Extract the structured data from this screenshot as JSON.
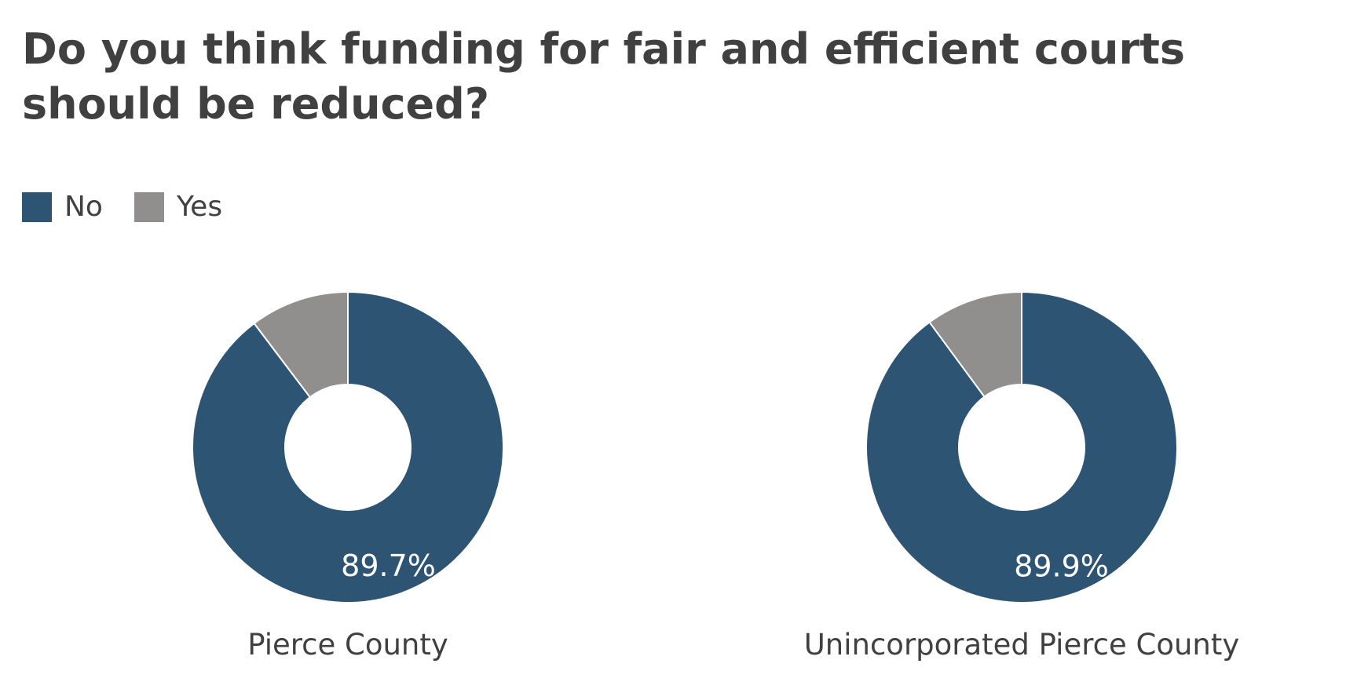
{
  "chart_data": {
    "type": "pie",
    "title": "Do you think funding for fair and efficient courts should be reduced?",
    "legend": {
      "placement": "top-left",
      "entries": [
        {
          "label": "No",
          "color": "#2e5474"
        },
        {
          "label": "Yes",
          "color": "#918e8e"
        }
      ]
    },
    "charts": [
      {
        "label": "Pierce County",
        "slices": [
          {
            "category": "No",
            "value": 89.7,
            "display": "89.7%"
          },
          {
            "category": "Yes",
            "value": 10.3
          }
        ]
      },
      {
        "label": "Unincorporated Pierce County",
        "slices": [
          {
            "category": "No",
            "value": 89.9,
            "display": "89.9%"
          },
          {
            "category": "Yes",
            "value": 10.1
          }
        ]
      }
    ]
  }
}
